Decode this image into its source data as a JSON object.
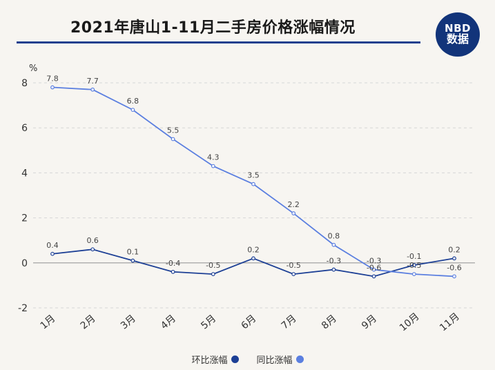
{
  "header": {
    "title": "2021年唐山1-11月二手房价格涨幅情况",
    "logo_line1": "NBD",
    "logo_line2": "数据"
  },
  "colors": {
    "title_rule": "#1b3f8e",
    "series_mom": "#1c3f95",
    "series_yoy": "#5b7fe0",
    "grid": "#d8d8d8",
    "background": "#f7f5f1"
  },
  "chart_data": {
    "type": "line",
    "title": "2021年唐山1-11月二手房价格涨幅情况",
    "ylabel": "%",
    "ylim": [
      -2,
      8
    ],
    "yticks": [
      -2,
      0,
      2,
      4,
      6,
      8
    ],
    "grid": true,
    "legend_position": "bottom-center",
    "categories": [
      "1月",
      "2月",
      "3月",
      "4月",
      "5月",
      "6月",
      "7月",
      "8月",
      "9月",
      "10月",
      "11月"
    ],
    "series": [
      {
        "name": "环比涨幅",
        "color": "#1c3f95",
        "values": [
          0.4,
          0.6,
          0.1,
          -0.4,
          -0.5,
          0.2,
          -0.5,
          -0.3,
          -0.6,
          -0.1,
          0.2
        ],
        "labels": [
          "0.4",
          "0.6",
          "0.1",
          "-0.4",
          "-0.5",
          "0.2",
          "-0.5",
          "-0.3",
          "-0.6",
          "-0.1",
          "0.2"
        ]
      },
      {
        "name": "同比涨幅",
        "color": "#5b7fe0",
        "values": [
          7.8,
          7.7,
          6.8,
          5.5,
          4.3,
          3.5,
          2.2,
          0.8,
          -0.3,
          -0.5,
          -0.6
        ],
        "labels": [
          "7.8",
          "7.7",
          "6.8",
          "5.5",
          "4.3",
          "3.5",
          "2.2",
          "0.8",
          "-0.3",
          "-0.5",
          "-0.6"
        ]
      }
    ]
  }
}
